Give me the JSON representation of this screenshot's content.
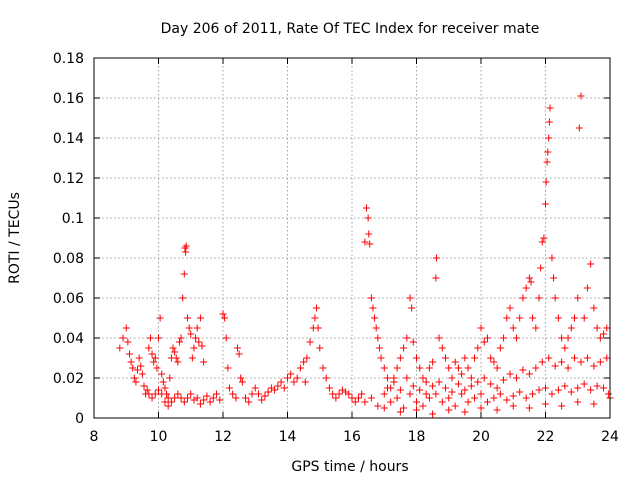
{
  "chart_data": {
    "type": "scatter",
    "title": "Day 206 of 2011, Rate Of TEC Index for receiver mate",
    "xlabel": "GPS time / hours",
    "ylabel": "ROTI / TECUs",
    "xlim": [
      8,
      24
    ],
    "ylim": [
      0,
      0.18
    ],
    "xticks": [
      8,
      10,
      12,
      14,
      16,
      18,
      20,
      22,
      24
    ],
    "xtick_labels": [
      "8",
      "10",
      "12",
      "14",
      "16",
      "18",
      "20",
      "22",
      "24"
    ],
    "yticks": [
      0,
      0.02,
      0.04,
      0.06,
      0.08,
      0.1,
      0.12,
      0.14,
      0.16,
      0.18
    ],
    "ytick_labels": [
      "0",
      "0.02",
      "0.04",
      "0.06",
      "0.08",
      "0.1",
      "0.12",
      "0.14",
      "0.16",
      "0.18"
    ],
    "grid": true,
    "marker": "+",
    "color": "#ff0000",
    "series": [
      {
        "name": "ROTI",
        "points": [
          [
            8.8,
            0.035
          ],
          [
            8.9,
            0.04
          ],
          [
            9.0,
            0.045
          ],
          [
            9.05,
            0.038
          ],
          [
            9.1,
            0.032
          ],
          [
            9.15,
            0.028
          ],
          [
            9.2,
            0.025
          ],
          [
            9.25,
            0.02
          ],
          [
            9.3,
            0.018
          ],
          [
            9.35,
            0.024
          ],
          [
            9.4,
            0.03
          ],
          [
            9.45,
            0.026
          ],
          [
            9.5,
            0.022
          ],
          [
            9.55,
            0.016
          ],
          [
            9.6,
            0.012
          ],
          [
            9.65,
            0.014
          ],
          [
            9.7,
            0.035
          ],
          [
            9.75,
            0.04
          ],
          [
            9.8,
            0.032
          ],
          [
            9.85,
            0.028
          ],
          [
            9.9,
            0.03
          ],
          [
            9.95,
            0.025
          ],
          [
            10.0,
            0.04
          ],
          [
            10.05,
            0.05
          ],
          [
            10.1,
            0.022
          ],
          [
            10.15,
            0.018
          ],
          [
            10.2,
            0.015
          ],
          [
            10.25,
            0.012
          ],
          [
            10.3,
            0.01
          ],
          [
            10.35,
            0.02
          ],
          [
            10.4,
            0.03
          ],
          [
            10.45,
            0.035
          ],
          [
            10.5,
            0.033
          ],
          [
            10.55,
            0.03
          ],
          [
            10.6,
            0.028
          ],
          [
            10.65,
            0.038
          ],
          [
            10.7,
            0.04
          ],
          [
            10.75,
            0.06
          ],
          [
            10.8,
            0.072
          ],
          [
            10.82,
            0.085
          ],
          [
            10.84,
            0.083
          ],
          [
            10.86,
            0.086
          ],
          [
            10.9,
            0.05
          ],
          [
            10.95,
            0.045
          ],
          [
            11.0,
            0.042
          ],
          [
            11.05,
            0.03
          ],
          [
            11.1,
            0.035
          ],
          [
            11.15,
            0.04
          ],
          [
            11.2,
            0.045
          ],
          [
            11.25,
            0.038
          ],
          [
            11.3,
            0.05
          ],
          [
            11.35,
            0.036
          ],
          [
            11.4,
            0.028
          ],
          [
            9.7,
            0.012
          ],
          [
            9.8,
            0.01
          ],
          [
            9.9,
            0.012
          ],
          [
            10.0,
            0.014
          ],
          [
            10.1,
            0.012
          ],
          [
            10.2,
            0.008
          ],
          [
            10.3,
            0.006
          ],
          [
            10.4,
            0.008
          ],
          [
            10.5,
            0.01
          ],
          [
            10.6,
            0.012
          ],
          [
            10.7,
            0.01
          ],
          [
            10.8,
            0.008
          ],
          [
            10.9,
            0.01
          ],
          [
            11.0,
            0.012
          ],
          [
            11.1,
            0.009
          ],
          [
            11.2,
            0.01
          ],
          [
            11.3,
            0.007
          ],
          [
            11.4,
            0.009
          ],
          [
            11.5,
            0.011
          ],
          [
            11.6,
            0.008
          ],
          [
            11.7,
            0.01
          ],
          [
            11.8,
            0.012
          ],
          [
            11.9,
            0.009
          ],
          [
            12.0,
            0.052
          ],
          [
            12.05,
            0.05
          ],
          [
            12.1,
            0.04
          ],
          [
            12.15,
            0.025
          ],
          [
            12.2,
            0.015
          ],
          [
            12.3,
            0.012
          ],
          [
            12.4,
            0.01
          ],
          [
            12.45,
            0.035
          ],
          [
            12.5,
            0.032
          ],
          [
            12.55,
            0.02
          ],
          [
            12.6,
            0.018
          ],
          [
            12.7,
            0.01
          ],
          [
            12.8,
            0.008
          ],
          [
            12.9,
            0.012
          ],
          [
            13.0,
            0.015
          ],
          [
            13.1,
            0.012
          ],
          [
            13.2,
            0.009
          ],
          [
            13.3,
            0.011
          ],
          [
            13.4,
            0.013
          ],
          [
            13.5,
            0.015
          ],
          [
            13.6,
            0.014
          ],
          [
            13.7,
            0.016
          ],
          [
            13.8,
            0.018
          ],
          [
            13.9,
            0.015
          ],
          [
            14.0,
            0.02
          ],
          [
            14.1,
            0.022
          ],
          [
            14.2,
            0.018
          ],
          [
            14.3,
            0.02
          ],
          [
            14.4,
            0.025
          ],
          [
            14.5,
            0.028
          ],
          [
            14.55,
            0.018
          ],
          [
            14.6,
            0.03
          ],
          [
            14.7,
            0.038
          ],
          [
            14.8,
            0.045
          ],
          [
            14.85,
            0.05
          ],
          [
            14.9,
            0.055
          ],
          [
            14.95,
            0.045
          ],
          [
            15.0,
            0.035
          ],
          [
            15.1,
            0.025
          ],
          [
            15.2,
            0.02
          ],
          [
            15.3,
            0.015
          ],
          [
            15.4,
            0.012
          ],
          [
            15.5,
            0.01
          ],
          [
            15.6,
            0.012
          ],
          [
            15.7,
            0.014
          ],
          [
            15.8,
            0.013
          ],
          [
            15.9,
            0.012
          ],
          [
            16.0,
            0.01
          ],
          [
            16.1,
            0.008
          ],
          [
            16.2,
            0.01
          ],
          [
            16.3,
            0.012
          ],
          [
            16.4,
            0.088
          ],
          [
            16.45,
            0.105
          ],
          [
            16.5,
            0.1
          ],
          [
            16.52,
            0.092
          ],
          [
            16.55,
            0.087
          ],
          [
            16.6,
            0.06
          ],
          [
            16.65,
            0.055
          ],
          [
            16.7,
            0.05
          ],
          [
            16.75,
            0.045
          ],
          [
            16.8,
            0.04
          ],
          [
            16.85,
            0.035
          ],
          [
            16.9,
            0.03
          ],
          [
            17.0,
            0.025
          ],
          [
            17.1,
            0.02
          ],
          [
            17.2,
            0.015
          ],
          [
            17.3,
            0.02
          ],
          [
            17.4,
            0.025
          ],
          [
            17.5,
            0.03
          ],
          [
            17.6,
            0.035
          ],
          [
            17.7,
            0.04
          ],
          [
            17.8,
            0.06
          ],
          [
            17.85,
            0.055
          ],
          [
            17.9,
            0.038
          ],
          [
            18.0,
            0.03
          ],
          [
            18.1,
            0.025
          ],
          [
            18.2,
            0.02
          ],
          [
            18.3,
            0.018
          ],
          [
            18.4,
            0.025
          ],
          [
            18.5,
            0.028
          ],
          [
            18.6,
            0.07
          ],
          [
            18.62,
            0.08
          ],
          [
            18.7,
            0.04
          ],
          [
            18.8,
            0.035
          ],
          [
            18.9,
            0.03
          ],
          [
            19.0,
            0.025
          ],
          [
            19.1,
            0.02
          ],
          [
            19.2,
            0.028
          ],
          [
            19.3,
            0.025
          ],
          [
            19.4,
            0.022
          ],
          [
            19.5,
            0.03
          ],
          [
            19.6,
            0.025
          ],
          [
            19.7,
            0.02
          ],
          [
            19.8,
            0.03
          ],
          [
            19.9,
            0.035
          ],
          [
            20.0,
            0.045
          ],
          [
            20.1,
            0.038
          ],
          [
            20.2,
            0.04
          ],
          [
            20.3,
            0.03
          ],
          [
            20.4,
            0.028
          ],
          [
            20.5,
            0.025
          ],
          [
            20.6,
            0.035
          ],
          [
            20.7,
            0.04
          ],
          [
            20.8,
            0.05
          ],
          [
            20.9,
            0.055
          ],
          [
            21.0,
            0.045
          ],
          [
            21.1,
            0.04
          ],
          [
            21.2,
            0.05
          ],
          [
            21.3,
            0.06
          ],
          [
            21.4,
            0.065
          ],
          [
            21.5,
            0.07
          ],
          [
            21.55,
            0.068
          ],
          [
            21.6,
            0.05
          ],
          [
            21.7,
            0.045
          ],
          [
            21.8,
            0.06
          ],
          [
            21.85,
            0.075
          ],
          [
            21.9,
            0.088
          ],
          [
            21.95,
            0.09
          ],
          [
            22.0,
            0.107
          ],
          [
            22.02,
            0.118
          ],
          [
            22.05,
            0.128
          ],
          [
            22.07,
            0.133
          ],
          [
            22.1,
            0.14
          ],
          [
            22.12,
            0.148
          ],
          [
            22.14,
            0.155
          ],
          [
            22.2,
            0.08
          ],
          [
            22.25,
            0.07
          ],
          [
            22.3,
            0.06
          ],
          [
            22.4,
            0.05
          ],
          [
            22.5,
            0.04
          ],
          [
            22.6,
            0.035
          ],
          [
            22.7,
            0.04
          ],
          [
            22.8,
            0.045
          ],
          [
            22.9,
            0.05
          ],
          [
            23.0,
            0.06
          ],
          [
            23.05,
            0.145
          ],
          [
            23.1,
            0.161
          ],
          [
            23.2,
            0.05
          ],
          [
            23.3,
            0.065
          ],
          [
            23.4,
            0.077
          ],
          [
            23.5,
            0.055
          ],
          [
            23.6,
            0.045
          ],
          [
            23.7,
            0.04
          ],
          [
            23.8,
            0.042
          ],
          [
            23.9,
            0.045
          ],
          [
            16.4,
            0.008
          ],
          [
            16.6,
            0.01
          ],
          [
            16.8,
            0.006
          ],
          [
            17.0,
            0.012
          ],
          [
            17.2,
            0.008
          ],
          [
            17.4,
            0.01
          ],
          [
            17.6,
            0.005
          ],
          [
            17.8,
            0.012
          ],
          [
            18.0,
            0.008
          ],
          [
            18.2,
            0.006
          ],
          [
            18.4,
            0.01
          ],
          [
            18.6,
            0.012
          ],
          [
            18.8,
            0.008
          ],
          [
            19.0,
            0.01
          ],
          [
            19.2,
            0.006
          ],
          [
            19.4,
            0.012
          ],
          [
            19.6,
            0.008
          ],
          [
            19.8,
            0.01
          ],
          [
            20.0,
            0.012
          ],
          [
            20.2,
            0.008
          ],
          [
            20.4,
            0.01
          ],
          [
            20.6,
            0.012
          ],
          [
            20.8,
            0.009
          ],
          [
            21.0,
            0.011
          ],
          [
            21.2,
            0.013
          ],
          [
            21.4,
            0.01
          ],
          [
            21.6,
            0.012
          ],
          [
            21.8,
            0.014
          ],
          [
            22.0,
            0.015
          ],
          [
            22.2,
            0.012
          ],
          [
            22.4,
            0.014
          ],
          [
            22.6,
            0.016
          ],
          [
            22.8,
            0.013
          ],
          [
            23.0,
            0.015
          ],
          [
            23.2,
            0.017
          ],
          [
            23.4,
            0.014
          ],
          [
            23.6,
            0.016
          ],
          [
            23.8,
            0.015
          ],
          [
            23.95,
            0.012
          ],
          [
            17.1,
            0.015
          ],
          [
            17.3,
            0.018
          ],
          [
            17.5,
            0.014
          ],
          [
            17.7,
            0.02
          ],
          [
            17.9,
            0.016
          ],
          [
            18.1,
            0.014
          ],
          [
            18.3,
            0.012
          ],
          [
            18.5,
            0.016
          ],
          [
            18.7,
            0.018
          ],
          [
            18.9,
            0.015
          ],
          [
            19.1,
            0.013
          ],
          [
            19.3,
            0.017
          ],
          [
            19.5,
            0.014
          ],
          [
            19.7,
            0.016
          ],
          [
            19.9,
            0.018
          ],
          [
            20.1,
            0.02
          ],
          [
            20.3,
            0.017
          ],
          [
            20.5,
            0.015
          ],
          [
            20.7,
            0.019
          ],
          [
            20.9,
            0.022
          ],
          [
            21.1,
            0.02
          ],
          [
            21.3,
            0.024
          ],
          [
            21.5,
            0.022
          ],
          [
            21.7,
            0.025
          ],
          [
            21.9,
            0.028
          ],
          [
            22.1,
            0.03
          ],
          [
            22.3,
            0.026
          ],
          [
            22.5,
            0.028
          ],
          [
            22.7,
            0.025
          ],
          [
            22.9,
            0.03
          ],
          [
            23.1,
            0.028
          ],
          [
            23.3,
            0.03
          ],
          [
            23.5,
            0.026
          ],
          [
            23.7,
            0.028
          ],
          [
            23.9,
            0.03
          ],
          [
            17.0,
            0.005
          ],
          [
            17.5,
            0.003
          ],
          [
            18.0,
            0.004
          ],
          [
            18.5,
            0.002
          ],
          [
            19.0,
            0.004
          ],
          [
            19.5,
            0.003
          ],
          [
            20.0,
            0.005
          ],
          [
            20.5,
            0.004
          ],
          [
            21.0,
            0.006
          ],
          [
            21.5,
            0.005
          ],
          [
            22.0,
            0.007
          ],
          [
            22.5,
            0.006
          ],
          [
            23.0,
            0.008
          ],
          [
            23.5,
            0.007
          ],
          [
            24.0,
            0.01
          ]
        ]
      }
    ]
  }
}
